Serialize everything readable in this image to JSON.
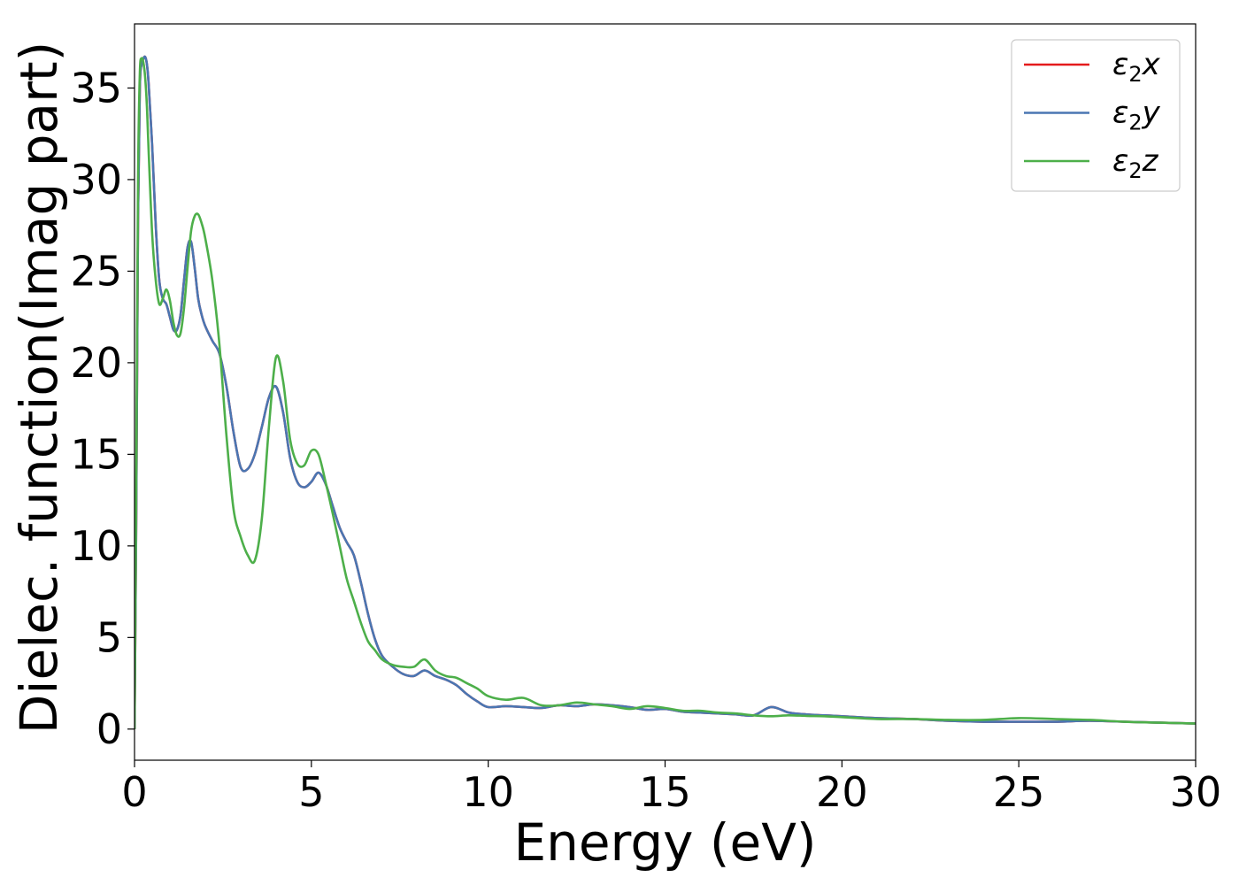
{
  "chart_data": {
    "type": "line",
    "title": "",
    "xlabel": "Energy (eV)",
    "ylabel": "Dielec. function(Imag part)",
    "xlim": [
      0,
      30
    ],
    "ylim": [
      -1.7,
      38.5
    ],
    "xticks": [
      0,
      5,
      10,
      15,
      20,
      25,
      30
    ],
    "yticks": [
      0,
      5,
      10,
      15,
      20,
      25,
      30,
      35
    ],
    "grid": false,
    "legend_position": "top-right",
    "series": [
      {
        "name": "ε₂x",
        "legend_base": "ε",
        "legend_sub": "2",
        "legend_axis": "x",
        "color": "#e41a1c",
        "x": [
          0,
          0.05,
          0.1,
          0.15,
          0.2,
          0.25,
          0.3,
          0.35,
          0.4,
          0.5,
          0.6,
          0.7,
          0.8,
          0.9,
          1.0,
          1.1,
          1.2,
          1.3,
          1.4,
          1.5,
          1.6,
          1.7,
          1.8,
          1.9,
          2.0,
          2.2,
          2.4,
          2.6,
          2.8,
          3.0,
          3.2,
          3.4,
          3.6,
          3.8,
          4.0,
          4.2,
          4.4,
          4.6,
          4.8,
          5.0,
          5.2,
          5.4,
          5.6,
          5.8,
          6.0,
          6.2,
          6.4,
          6.6,
          6.8,
          7.0,
          7.3,
          7.6,
          7.9,
          8.2,
          8.5,
          8.8,
          9.1,
          9.4,
          9.7,
          10.0,
          10.5,
          11.0,
          11.5,
          12.0,
          12.5,
          13.0,
          13.5,
          14.0,
          14.5,
          15.0,
          15.5,
          16.0,
          16.5,
          17.0,
          17.5,
          18.0,
          18.5,
          19.0,
          19.5,
          20.0,
          21.0,
          22.0,
          23.0,
          24.0,
          25.0,
          26.0,
          27.0,
          28.0,
          29.0,
          30.0
        ],
        "values": [
          0,
          12,
          28,
          35,
          36.3,
          36.6,
          36.7,
          36.3,
          35.2,
          31.8,
          27.5,
          24.5,
          23.5,
          23.2,
          22.5,
          21.8,
          21.8,
          22.6,
          24.5,
          26.3,
          26.6,
          25.2,
          23.5,
          22.6,
          22.0,
          21.2,
          20.5,
          18.7,
          16.2,
          14.3,
          14.2,
          15.0,
          16.5,
          18.1,
          18.7,
          17.3,
          14.8,
          13.5,
          13.2,
          13.5,
          14.0,
          13.4,
          12.2,
          11.0,
          10.2,
          9.5,
          8.0,
          6.3,
          4.9,
          4.0,
          3.4,
          3.0,
          2.9,
          3.2,
          2.9,
          2.7,
          2.4,
          1.9,
          1.5,
          1.2,
          1.25,
          1.2,
          1.15,
          1.3,
          1.25,
          1.35,
          1.3,
          1.2,
          1.05,
          1.1,
          0.95,
          0.9,
          0.85,
          0.8,
          0.75,
          1.2,
          0.9,
          0.8,
          0.75,
          0.7,
          0.6,
          0.55,
          0.45,
          0.4,
          0.4,
          0.4,
          0.45,
          0.4,
          0.35,
          0.3
        ]
      },
      {
        "name": "ε₂y",
        "legend_base": "ε",
        "legend_sub": "2",
        "legend_axis": "y",
        "color": "#4a76b2",
        "x": [
          0,
          0.05,
          0.1,
          0.15,
          0.2,
          0.25,
          0.3,
          0.35,
          0.4,
          0.5,
          0.6,
          0.7,
          0.8,
          0.9,
          1.0,
          1.1,
          1.2,
          1.3,
          1.4,
          1.5,
          1.6,
          1.7,
          1.8,
          1.9,
          2.0,
          2.2,
          2.4,
          2.6,
          2.8,
          3.0,
          3.2,
          3.4,
          3.6,
          3.8,
          4.0,
          4.2,
          4.4,
          4.6,
          4.8,
          5.0,
          5.2,
          5.4,
          5.6,
          5.8,
          6.0,
          6.2,
          6.4,
          6.6,
          6.8,
          7.0,
          7.3,
          7.6,
          7.9,
          8.2,
          8.5,
          8.8,
          9.1,
          9.4,
          9.7,
          10.0,
          10.5,
          11.0,
          11.5,
          12.0,
          12.5,
          13.0,
          13.5,
          14.0,
          14.5,
          15.0,
          15.5,
          16.0,
          16.5,
          17.0,
          17.5,
          18.0,
          18.5,
          19.0,
          19.5,
          20.0,
          21.0,
          22.0,
          23.0,
          24.0,
          25.0,
          26.0,
          27.0,
          28.0,
          29.0,
          30.0
        ],
        "values": [
          0,
          12,
          28,
          35,
          36.3,
          36.6,
          36.7,
          36.3,
          35.2,
          31.8,
          27.5,
          24.5,
          23.5,
          23.2,
          22.5,
          21.8,
          21.8,
          22.6,
          24.5,
          26.3,
          26.6,
          25.2,
          23.5,
          22.6,
          22.0,
          21.2,
          20.5,
          18.7,
          16.2,
          14.3,
          14.2,
          15.0,
          16.5,
          18.1,
          18.7,
          17.3,
          14.8,
          13.5,
          13.2,
          13.5,
          14.0,
          13.4,
          12.2,
          11.0,
          10.2,
          9.5,
          8.0,
          6.3,
          4.9,
          4.0,
          3.4,
          3.0,
          2.9,
          3.2,
          2.9,
          2.7,
          2.4,
          1.9,
          1.5,
          1.2,
          1.25,
          1.2,
          1.15,
          1.3,
          1.25,
          1.35,
          1.3,
          1.2,
          1.05,
          1.1,
          0.95,
          0.9,
          0.85,
          0.8,
          0.75,
          1.2,
          0.9,
          0.8,
          0.75,
          0.7,
          0.6,
          0.55,
          0.45,
          0.4,
          0.4,
          0.4,
          0.45,
          0.4,
          0.35,
          0.3
        ]
      },
      {
        "name": "ε₂z",
        "legend_base": "ε",
        "legend_sub": "2",
        "legend_axis": "z",
        "color": "#4daf4a",
        "x": [
          0,
          0.05,
          0.1,
          0.15,
          0.2,
          0.25,
          0.3,
          0.35,
          0.4,
          0.5,
          0.6,
          0.7,
          0.8,
          0.9,
          1.0,
          1.1,
          1.2,
          1.3,
          1.4,
          1.5,
          1.6,
          1.7,
          1.8,
          1.9,
          2.0,
          2.2,
          2.4,
          2.6,
          2.8,
          3.0,
          3.2,
          3.4,
          3.6,
          3.8,
          4.0,
          4.2,
          4.4,
          4.6,
          4.8,
          5.0,
          5.2,
          5.4,
          5.6,
          5.8,
          6.0,
          6.2,
          6.4,
          6.6,
          6.8,
          7.0,
          7.3,
          7.6,
          7.9,
          8.2,
          8.5,
          8.8,
          9.1,
          9.4,
          9.7,
          10.0,
          10.5,
          11.0,
          11.5,
          12.0,
          12.5,
          13.0,
          13.5,
          14.0,
          14.5,
          15.0,
          15.5,
          16.0,
          16.5,
          17.0,
          17.5,
          18.0,
          18.5,
          19.0,
          19.5,
          20.0,
          21.0,
          22.0,
          23.0,
          24.0,
          25.0,
          26.0,
          27.0,
          28.0,
          29.0,
          30.0
        ],
        "values": [
          0,
          14,
          30,
          35.8,
          36.6,
          36.4,
          35.6,
          34.0,
          31.5,
          27.0,
          24.5,
          23.2,
          23.5,
          24.0,
          23.4,
          22.2,
          21.5,
          21.6,
          23.0,
          25.2,
          27.2,
          28.0,
          28.1,
          27.6,
          26.8,
          24.5,
          21.0,
          16.0,
          12.0,
          10.5,
          9.5,
          9.2,
          11.5,
          16.5,
          20.3,
          19.0,
          15.8,
          14.5,
          14.4,
          15.2,
          15.0,
          13.5,
          11.8,
          10.0,
          8.2,
          7.0,
          5.8,
          4.8,
          4.3,
          3.8,
          3.5,
          3.4,
          3.4,
          3.8,
          3.2,
          2.9,
          2.8,
          2.5,
          2.2,
          1.8,
          1.6,
          1.7,
          1.3,
          1.3,
          1.45,
          1.35,
          1.25,
          1.1,
          1.25,
          1.15,
          1.0,
          1.0,
          0.9,
          0.85,
          0.75,
          0.7,
          0.75,
          0.72,
          0.7,
          0.65,
          0.55,
          0.55,
          0.5,
          0.5,
          0.6,
          0.55,
          0.5,
          0.4,
          0.35,
          0.3
        ]
      }
    ]
  }
}
